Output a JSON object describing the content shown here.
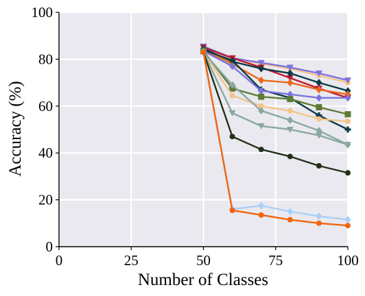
{
  "chart_data": {
    "type": "line",
    "title": "",
    "xlabel": "Number of Classes",
    "ylabel": "Accuracy (%)",
    "xlim": [
      0,
      100
    ],
    "ylim": [
      0,
      100
    ],
    "xticks": [
      0,
      25,
      50,
      75,
      100
    ],
    "yticks": [
      0,
      20,
      40,
      60,
      80,
      100
    ],
    "xtick_labels": [
      "0",
      "25",
      "50",
      "75",
      "100"
    ],
    "ytick_labels": [
      "0",
      "20",
      "40",
      "60",
      "80",
      "100"
    ],
    "grid": true,
    "background": "#e9e9ef",
    "x": [
      50,
      60,
      70,
      80,
      90,
      100
    ],
    "series": [
      {
        "color": "#f4c48a",
        "marker": "circle",
        "values": [
          85.5,
          80.5,
          78.0,
          76.0,
          73.0,
          70.0
        ]
      },
      {
        "color": "#7b74e0",
        "marker": "triangle-down",
        "values": [
          85.5,
          80.5,
          78.5,
          76.5,
          74.0,
          71.0
        ]
      },
      {
        "color": "#c0182e",
        "marker": "triangle-down",
        "values": [
          85.0,
          80.5,
          76.5,
          72.0,
          67.5,
          63.5
        ]
      },
      {
        "color": "#0d3b45",
        "marker": "diamond",
        "values": [
          84.5,
          79.0,
          76.0,
          74.0,
          70.0,
          66.5
        ]
      },
      {
        "color": "#e86a1c",
        "marker": "diamond",
        "values": [
          84.0,
          78.0,
          71.0,
          70.0,
          67.0,
          65.0
        ]
      },
      {
        "color": "#0d3b45",
        "marker": "plus",
        "values": [
          84.0,
          79.5,
          67.0,
          63.5,
          56.0,
          50.0
        ]
      },
      {
        "color": "#7b74e0",
        "marker": "diamond",
        "values": [
          83.5,
          77.0,
          66.5,
          65.0,
          63.5,
          63.5
        ]
      },
      {
        "color": "#5c7a34",
        "marker": "square",
        "values": [
          83.5,
          67.5,
          64.0,
          63.0,
          59.5,
          56.5
        ]
      },
      {
        "color": "#f4c48a",
        "marker": "circle",
        "values": [
          83.0,
          64.5,
          60.0,
          58.0,
          54.5,
          53.5
        ]
      },
      {
        "color": "#8aa89e",
        "marker": "diamond",
        "values": [
          83.0,
          69.0,
          58.0,
          54.0,
          49.5,
          43.5
        ]
      },
      {
        "color": "#8aa89e",
        "marker": "triangle-down",
        "values": [
          83.0,
          57.0,
          51.5,
          50.0,
          47.5,
          43.5
        ]
      },
      {
        "color": "#23301a",
        "marker": "circle",
        "values": [
          83.0,
          47.0,
          41.5,
          38.5,
          34.5,
          31.5
        ]
      },
      {
        "color": "#a9d0f7",
        "marker": "diamond",
        "values": [
          83.0,
          16.0,
          17.5,
          15.0,
          13.0,
          11.5
        ]
      },
      {
        "color": "#f0650e",
        "marker": "circle",
        "values": [
          83.0,
          15.5,
          13.5,
          11.5,
          10.0,
          9.0
        ]
      }
    ]
  }
}
